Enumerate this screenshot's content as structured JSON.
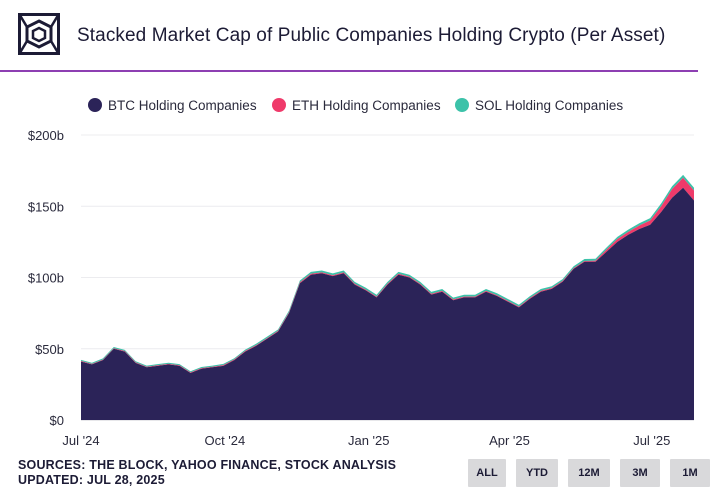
{
  "header": {
    "title": "Stacked Market Cap of Public Companies Holding Crypto (Per Asset)",
    "logo_icon": "theblock-cube-logo"
  },
  "footer": {
    "sources": "SOURCES: THE BLOCK, YAHOO FINANCE, STOCK ANALYSIS",
    "updated": "UPDATED: JUL 28, 2025"
  },
  "range_buttons": [
    "ALL",
    "YTD",
    "12M",
    "3M",
    "1M"
  ],
  "colors": {
    "btc": "#2b2358",
    "eth": "#ef3a6a",
    "sol": "#3cc2a9",
    "divider": "#8d3fb2"
  },
  "chart_data": {
    "type": "area",
    "stacked": true,
    "title": "",
    "xlabel": "",
    "ylabel": "",
    "ylim": [
      0,
      200
    ],
    "y_ticks": [
      "$0",
      "$50b",
      "$100b",
      "$150b",
      "$200b"
    ],
    "y_tick_values": [
      0,
      50,
      100,
      150,
      200
    ],
    "x_ticks": [
      "Jul '24",
      "Oct '24",
      "Jan '25",
      "Apr '25",
      "Jul '25"
    ],
    "x_tick_dates": [
      "2024-07-01",
      "2024-10-01",
      "2025-01-01",
      "2025-04-01",
      "2025-07-01"
    ],
    "grid": true,
    "legend_position": "top",
    "x": [
      "2024-07-01",
      "2024-07-08",
      "2024-07-15",
      "2024-07-22",
      "2024-07-29",
      "2024-08-05",
      "2024-08-12",
      "2024-08-19",
      "2024-08-26",
      "2024-09-02",
      "2024-09-09",
      "2024-09-16",
      "2024-09-23",
      "2024-09-30",
      "2024-10-07",
      "2024-10-14",
      "2024-10-21",
      "2024-10-28",
      "2024-11-04",
      "2024-11-11",
      "2024-11-18",
      "2024-11-25",
      "2024-12-02",
      "2024-12-09",
      "2024-12-16",
      "2024-12-23",
      "2024-12-30",
      "2025-01-06",
      "2025-01-13",
      "2025-01-20",
      "2025-01-27",
      "2025-02-03",
      "2025-02-10",
      "2025-02-17",
      "2025-02-24",
      "2025-03-03",
      "2025-03-10",
      "2025-03-17",
      "2025-03-24",
      "2025-03-31",
      "2025-04-07",
      "2025-04-14",
      "2025-04-21",
      "2025-04-28",
      "2025-05-05",
      "2025-05-12",
      "2025-05-19",
      "2025-05-26",
      "2025-06-02",
      "2025-06-09",
      "2025-06-16",
      "2025-06-23",
      "2025-06-30",
      "2025-07-07",
      "2025-07-14",
      "2025-07-21",
      "2025-07-28"
    ],
    "series": [
      {
        "name": "BTC Holding Companies",
        "values": [
          41,
          39,
          42,
          50,
          48,
          40,
          37,
          38,
          39,
          38,
          33,
          36,
          37,
          38,
          42,
          48,
          52,
          57,
          62,
          75,
          96,
          102,
          103,
          101,
          103,
          95,
          91,
          86,
          95,
          102,
          100,
          95,
          88,
          90,
          84,
          86,
          86,
          90,
          87,
          83,
          79,
          85,
          90,
          92,
          97,
          106,
          111,
          111,
          118,
          125,
          130,
          134,
          137,
          146,
          156,
          163,
          154
        ]
      },
      {
        "name": "ETH Holding Companies",
        "values": [
          0.4,
          0.4,
          0.4,
          0.4,
          0.4,
          0.4,
          0.4,
          0.4,
          0.4,
          0.4,
          0.4,
          0.4,
          0.4,
          0.5,
          0.5,
          0.5,
          0.5,
          0.5,
          0.5,
          0.6,
          0.6,
          0.6,
          0.6,
          0.6,
          0.6,
          0.6,
          0.6,
          0.6,
          0.6,
          0.6,
          0.6,
          0.6,
          0.6,
          0.6,
          0.6,
          0.6,
          0.6,
          0.6,
          0.6,
          0.6,
          0.6,
          0.6,
          0.6,
          0.6,
          0.6,
          0.6,
          0.6,
          0.8,
          1.5,
          2,
          2,
          2.5,
          3,
          4,
          6,
          7,
          7
        ]
      },
      {
        "name": "SOL Holding Companies",
        "values": [
          0.8,
          0.8,
          0.8,
          0.8,
          0.8,
          0.8,
          0.8,
          0.8,
          0.8,
          0.8,
          0.8,
          0.8,
          0.8,
          0.9,
          0.9,
          0.9,
          1,
          1,
          1,
          1.2,
          1.3,
          1.3,
          1.3,
          1.3,
          1.3,
          1.3,
          1.3,
          1.3,
          1.3,
          1.3,
          1.3,
          1.3,
          1.3,
          1.3,
          1.3,
          1.3,
          1.3,
          1.3,
          1.3,
          1.3,
          1.3,
          1.3,
          1.3,
          1.3,
          1.3,
          1.3,
          1.4,
          1.4,
          1.5,
          1.5,
          1.6,
          1.6,
          1.7,
          2,
          2,
          2,
          2
        ]
      }
    ]
  }
}
